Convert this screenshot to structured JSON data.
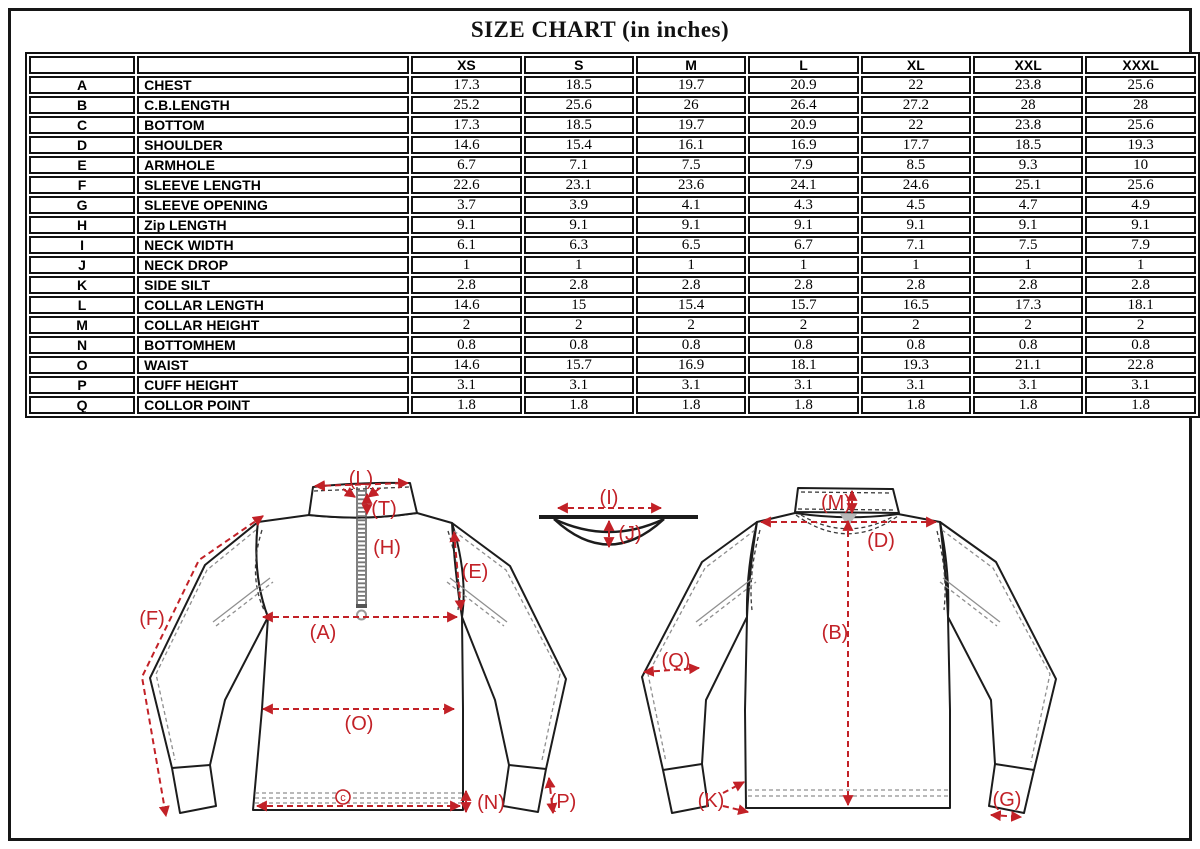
{
  "title": "SIZE CHART (in inches)",
  "table": {
    "size_headers": [
      "XS",
      "S",
      "M",
      "L",
      "XL",
      "XXL",
      "XXXL"
    ],
    "rows": [
      {
        "code": "A",
        "name": "CHEST",
        "values": [
          "17.3",
          "18.5",
          "19.7",
          "20.9",
          "22",
          "23.8",
          "25.6"
        ]
      },
      {
        "code": "B",
        "name": "C.B.LENGTH",
        "values": [
          "25.2",
          "25.6",
          "26",
          "26.4",
          "27.2",
          "28",
          "28"
        ]
      },
      {
        "code": "C",
        "name": "BOTTOM",
        "values": [
          "17.3",
          "18.5",
          "19.7",
          "20.9",
          "22",
          "23.8",
          "25.6"
        ]
      },
      {
        "code": "D",
        "name": "SHOULDER",
        "values": [
          "14.6",
          "15.4",
          "16.1",
          "16.9",
          "17.7",
          "18.5",
          "19.3"
        ]
      },
      {
        "code": "E",
        "name": "ARMHOLE",
        "values": [
          "6.7",
          "7.1",
          "7.5",
          "7.9",
          "8.5",
          "9.3",
          "10"
        ]
      },
      {
        "code": "F",
        "name": "SLEEVE LENGTH",
        "values": [
          "22.6",
          "23.1",
          "23.6",
          "24.1",
          "24.6",
          "25.1",
          "25.6"
        ]
      },
      {
        "code": "G",
        "name": "SLEEVE OPENING",
        "values": [
          "3.7",
          "3.9",
          "4.1",
          "4.3",
          "4.5",
          "4.7",
          "4.9"
        ]
      },
      {
        "code": "H",
        "name": "Zip LENGTH",
        "values": [
          "9.1",
          "9.1",
          "9.1",
          "9.1",
          "9.1",
          "9.1",
          "9.1"
        ]
      },
      {
        "code": "I",
        "name": "NECK WIDTH",
        "values": [
          "6.1",
          "6.3",
          "6.5",
          "6.7",
          "7.1",
          "7.5",
          "7.9"
        ]
      },
      {
        "code": "J",
        "name": "NECK DROP",
        "values": [
          "1",
          "1",
          "1",
          "1",
          "1",
          "1",
          "1"
        ]
      },
      {
        "code": "K",
        "name": "SIDE SILT",
        "values": [
          "2.8",
          "2.8",
          "2.8",
          "2.8",
          "2.8",
          "2.8",
          "2.8"
        ]
      },
      {
        "code": "L",
        "name": "COLLAR LENGTH",
        "values": [
          "14.6",
          "15",
          "15.4",
          "15.7",
          "16.5",
          "17.3",
          "18.1"
        ]
      },
      {
        "code": "M",
        "name": "COLLAR HEIGHT",
        "values": [
          "2",
          "2",
          "2",
          "2",
          "2",
          "2",
          "2"
        ]
      },
      {
        "code": "N",
        "name": "BOTTOMHEM",
        "values": [
          "0.8",
          "0.8",
          "0.8",
          "0.8",
          "0.8",
          "0.8",
          "0.8"
        ]
      },
      {
        "code": "O",
        "name": "WAIST",
        "values": [
          "14.6",
          "15.7",
          "16.9",
          "18.1",
          "19.3",
          "21.1",
          "22.8"
        ]
      },
      {
        "code": "P",
        "name": "CUFF HEIGHT",
        "values": [
          "3.1",
          "3.1",
          "3.1",
          "3.1",
          "3.1",
          "3.1",
          "3.1"
        ]
      },
      {
        "code": "Q",
        "name": "COLLOR POINT",
        "values": [
          "1.8",
          "1.8",
          "1.8",
          "1.8",
          "1.8",
          "1.8",
          "1.8"
        ]
      }
    ]
  },
  "diagram": {
    "front_labels": {
      "L": "(L)",
      "T": "(T)",
      "H": "(H)",
      "E": "(E)",
      "F": "(F)",
      "A": "(A)",
      "O": "(O)",
      "C": "c",
      "N": "(N)",
      "P": "(P)"
    },
    "detail_labels": {
      "I": "(I)",
      "J": "(J)"
    },
    "back_labels": {
      "M": "(M)",
      "D": "(D)",
      "B": "(B)",
      "Q": "(Q)",
      "K": "(K)",
      "G": "(G)"
    },
    "colors": {
      "annotation_red": "#c22127",
      "outline_black": "#1c1c1c",
      "seam_gray": "#8f8f8f"
    }
  }
}
